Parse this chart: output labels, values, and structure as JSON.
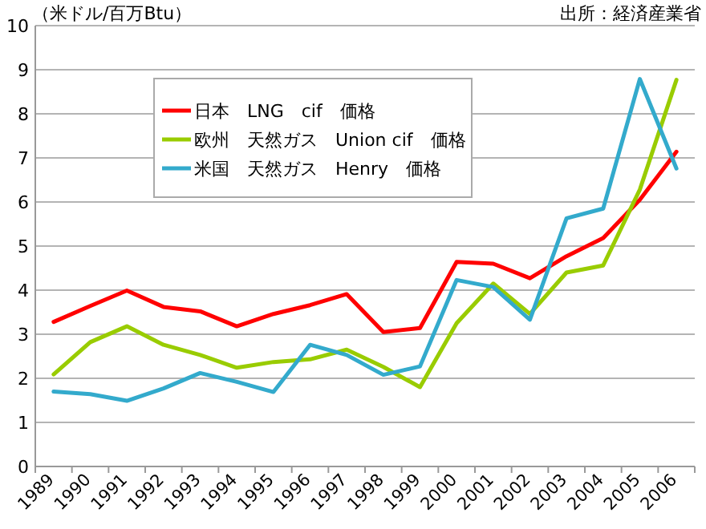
{
  "chart_data": {
    "type": "line",
    "ylabel": "（米ドル/百万Btu）",
    "annotations": [
      "出所：経済産業省"
    ],
    "categories": [
      "1989",
      "1990",
      "1991",
      "1992",
      "1993",
      "1994",
      "1995",
      "1996",
      "1997",
      "1998",
      "1999",
      "2000",
      "2001",
      "2002",
      "2003",
      "2004",
      "2005",
      "2006"
    ],
    "series": [
      {
        "name": "日本　LNG　cif　価格",
        "color": "#ff0000",
        "values": [
          3.28,
          3.64,
          3.99,
          3.62,
          3.52,
          3.18,
          3.46,
          3.66,
          3.91,
          3.05,
          3.14,
          4.64,
          4.6,
          4.27,
          4.77,
          5.18,
          6.05,
          7.14
        ]
      },
      {
        "name": "欧州　天然ガス　Union cif　価格",
        "color": "#99cc00",
        "values": [
          2.09,
          2.82,
          3.18,
          2.76,
          2.53,
          2.24,
          2.37,
          2.43,
          2.65,
          2.26,
          1.8,
          3.25,
          4.15,
          3.46,
          4.4,
          4.56,
          6.28,
          8.77
        ]
      },
      {
        "name": "米国　天然ガス　Henry　価格",
        "color": "#33aacc",
        "values": [
          1.7,
          1.64,
          1.49,
          1.77,
          2.12,
          1.92,
          1.69,
          2.76,
          2.53,
          2.08,
          2.27,
          4.23,
          4.07,
          3.33,
          5.63,
          5.85,
          8.79,
          6.76
        ]
      }
    ],
    "ylim": [
      0,
      10
    ],
    "yticks": [
      0,
      1,
      2,
      3,
      4,
      5,
      6,
      7,
      8,
      9,
      10
    ],
    "grid": "y",
    "legend": "top left"
  }
}
